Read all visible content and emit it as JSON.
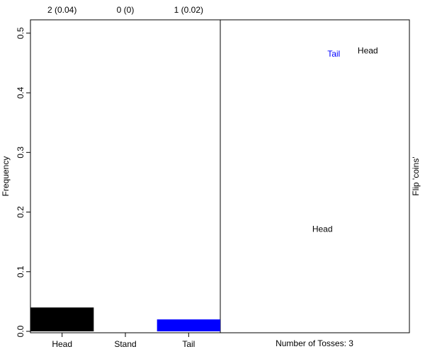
{
  "chart_data": [
    {
      "type": "bar",
      "ylabel": "Frequency",
      "categories": [
        "Head",
        "Stand",
        "Tail"
      ],
      "values": [
        0.04,
        0,
        0.02
      ],
      "value_labels": [
        "2 (0.04)",
        "0 (0)",
        "1 (0.02)"
      ],
      "colors": [
        "#000000",
        "#000000",
        "#0000ff"
      ],
      "ylim": [
        0,
        0.52
      ],
      "yticks": [
        {
          "value": 0,
          "label": "0.0"
        },
        0.1,
        0.2,
        0.3,
        0.4,
        0.5
      ]
    },
    {
      "type": "scatter",
      "xlabel": "Number of Tosses: 3",
      "ylabel": "Flip 'coins'",
      "labels": [
        "Tail",
        "Head",
        "Head"
      ],
      "colors": [
        "#0000ff",
        "#000000",
        "#000000"
      ],
      "x": [
        0.6,
        0.78,
        0.54
      ],
      "y": [
        0.89,
        0.9,
        0.33
      ],
      "xlim": [
        0,
        1
      ],
      "ylim": [
        0,
        1
      ]
    }
  ]
}
